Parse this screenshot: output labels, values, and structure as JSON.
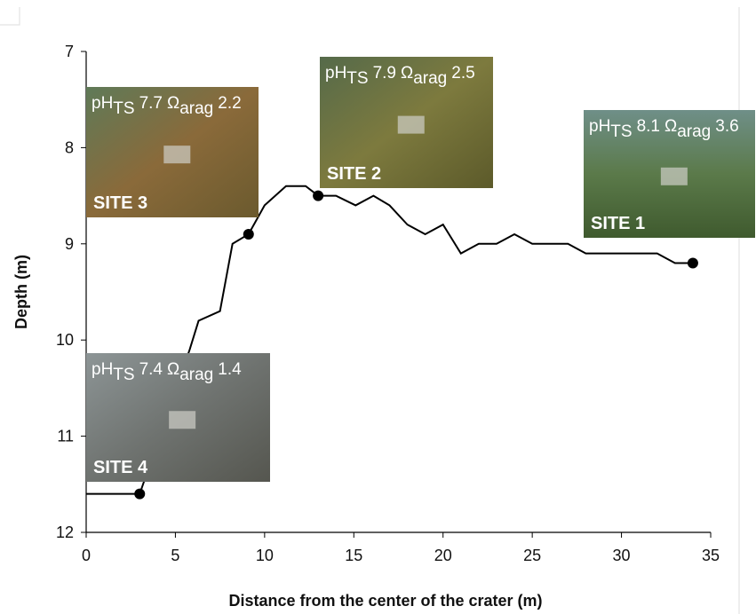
{
  "chart_data": {
    "type": "line",
    "x_label": "Distance from the center of the crater (m)",
    "y_label": "Depth (m)",
    "x": [
      0,
      3,
      5.8,
      6.3,
      7.5,
      8.2,
      9.1,
      10,
      11.2,
      12.3,
      13,
      14,
      15.1,
      16.1,
      17,
      18,
      19,
      20,
      21,
      22,
      23,
      24,
      25,
      26,
      27,
      28,
      29,
      30,
      31,
      32,
      33,
      34
    ],
    "values": [
      11.6,
      11.6,
      10.1,
      9.8,
      9.7,
      9.0,
      8.9,
      8.6,
      8.4,
      8.4,
      8.5,
      8.5,
      8.6,
      8.5,
      8.6,
      8.8,
      8.9,
      8.8,
      9.1,
      9.0,
      9.0,
      8.9,
      9.0,
      9.0,
      9.0,
      9.1,
      9.1,
      9.1,
      9.1,
      9.1,
      9.2,
      9.2
    ],
    "color": "#000000",
    "xlim": [
      0,
      35
    ],
    "xticks": [
      0,
      5,
      10,
      15,
      20,
      25,
      30,
      35
    ],
    "ylim": [
      7,
      12
    ],
    "yticks": [
      7,
      8,
      9,
      10,
      11,
      12
    ],
    "y_inverted": true,
    "ph_symbol": "pH",
    "ph_sub": "TS",
    "omega_symbol": "Ω",
    "omega_sub": "arag",
    "sites": [
      {
        "label": "SITE 3",
        "ph": 7.7,
        "omega": 2.2,
        "x": 9.1,
        "depth": 8.9
      },
      {
        "label": "SITE 2",
        "ph": 7.9,
        "omega": 2.5,
        "x": 13,
        "depth": 8.5
      },
      {
        "label": "SITE 1",
        "ph": 8.1,
        "omega": 3.6,
        "x": 34,
        "depth": 9.2
      },
      {
        "label": "SITE 4",
        "ph": 7.4,
        "omega": 1.4,
        "x": 3,
        "depth": 11.6
      }
    ]
  }
}
